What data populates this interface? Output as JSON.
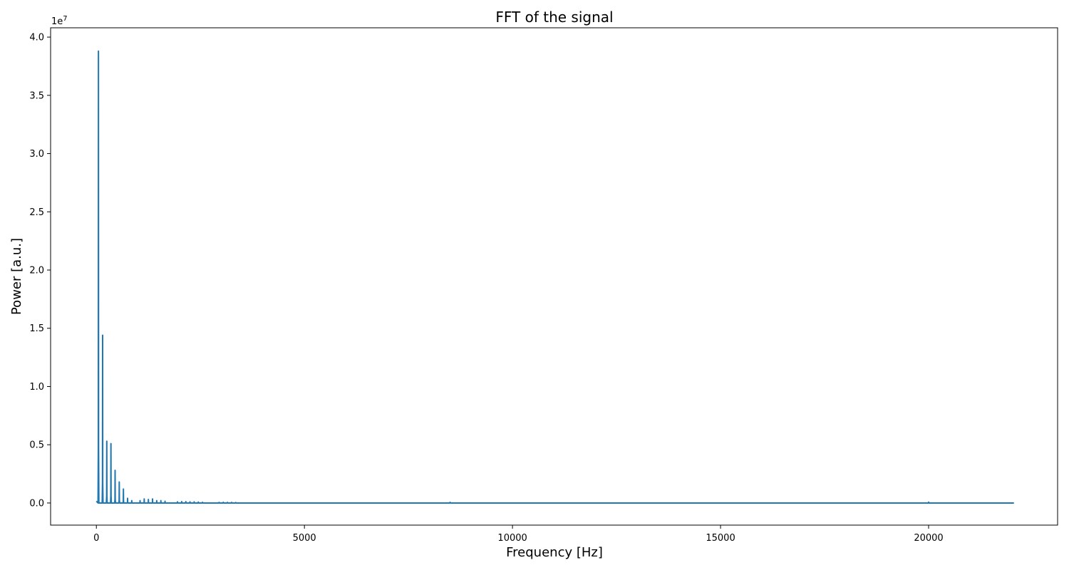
{
  "chart_data": {
    "type": "line",
    "title": "FFT of the signal",
    "xlabel": "Frequency [Hz]",
    "ylabel": "Power [a.u.]",
    "y_offset_label": "1e7",
    "xlim": [
      -1100,
      23100
    ],
    "ylim": [
      -0.19,
      4.08
    ],
    "y_scale_factor": 10000000,
    "x_ticks": [
      0,
      5000,
      10000,
      15000,
      20000
    ],
    "x_tick_labels": [
      "0",
      "5000",
      "10000",
      "15000",
      "20000"
    ],
    "y_ticks": [
      0.0,
      0.5,
      1.0,
      1.5,
      2.0,
      2.5,
      3.0,
      3.5,
      4.0
    ],
    "y_tick_labels": [
      "0.0",
      "0.5",
      "1.0",
      "1.5",
      "2.0",
      "2.5",
      "3.0",
      "3.5",
      "4.0"
    ],
    "grid": false,
    "line_color": "#1f77b4",
    "series": [
      {
        "peaks": [
          {
            "x": 50,
            "y": 3.88
          },
          {
            "x": 150,
            "y": 1.44
          },
          {
            "x": 250,
            "y": 0.53
          },
          {
            "x": 350,
            "y": 0.51
          },
          {
            "x": 450,
            "y": 0.28
          },
          {
            "x": 550,
            "y": 0.18
          },
          {
            "x": 650,
            "y": 0.12
          },
          {
            "x": 750,
            "y": 0.04
          },
          {
            "x": 850,
            "y": 0.02
          },
          {
            "x": 1050,
            "y": 0.02
          },
          {
            "x": 1150,
            "y": 0.035
          },
          {
            "x": 1250,
            "y": 0.03
          },
          {
            "x": 1350,
            "y": 0.035
          },
          {
            "x": 1450,
            "y": 0.02
          },
          {
            "x": 1550,
            "y": 0.02
          },
          {
            "x": 1650,
            "y": 0.015
          },
          {
            "x": 1950,
            "y": 0.01
          },
          {
            "x": 2050,
            "y": 0.012
          },
          {
            "x": 2150,
            "y": 0.012
          },
          {
            "x": 2250,
            "y": 0.01
          },
          {
            "x": 2350,
            "y": 0.01
          },
          {
            "x": 2450,
            "y": 0.008
          },
          {
            "x": 2550,
            "y": 0.006
          },
          {
            "x": 2950,
            "y": 0.005
          },
          {
            "x": 3050,
            "y": 0.006
          },
          {
            "x": 3150,
            "y": 0.005
          },
          {
            "x": 3250,
            "y": 0.005
          },
          {
            "x": 3350,
            "y": 0.004
          },
          {
            "x": 8500,
            "y": 0.006
          },
          {
            "x": 20000,
            "y": 0.007
          }
        ],
        "x_end": 22050
      }
    ]
  }
}
